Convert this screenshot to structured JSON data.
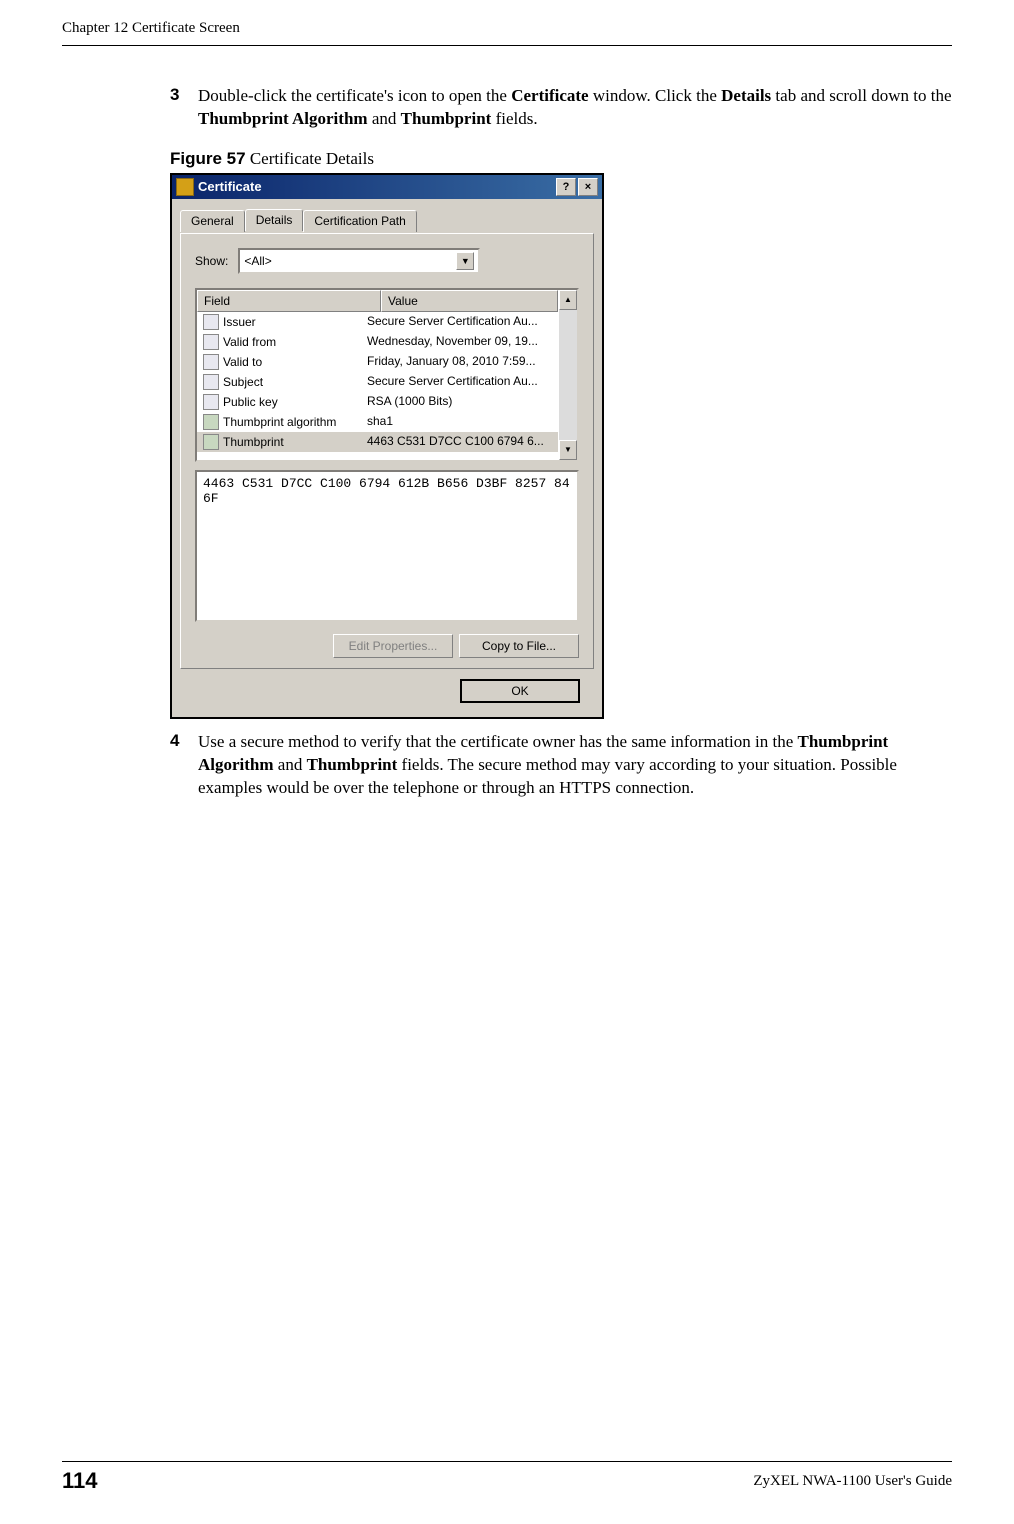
{
  "header": {
    "chapter": "Chapter 12 Certificate Screen"
  },
  "step3": {
    "num": "3",
    "text_before": "Double-click the certificate's icon to open the ",
    "bold1": "Certificate",
    "text_mid1": " window. Click the ",
    "bold2": "Details",
    "text_mid2": " tab and scroll down to the ",
    "bold3": "Thumbprint Algorithm",
    "text_mid3": " and ",
    "bold4": "Thumbprint",
    "text_after": " fields."
  },
  "figure": {
    "label_bold": "Figure 57",
    "label_rest": "   Certificate Details"
  },
  "window": {
    "title": "Certificate",
    "help": "?",
    "close": "×",
    "tabs": {
      "general": "General",
      "details": "Details",
      "certpath": "Certification Path"
    },
    "show_label": "Show:",
    "show_value": "<All>",
    "dropdown_arrow": "▼",
    "col_field": "Field",
    "col_value": "Value",
    "rows": [
      {
        "field": "Issuer",
        "value": "Secure Server Certification Au...",
        "special": false
      },
      {
        "field": "Valid from",
        "value": "Wednesday, November 09, 19...",
        "special": false
      },
      {
        "field": "Valid to",
        "value": "Friday, January 08, 2010 7:59...",
        "special": false
      },
      {
        "field": "Subject",
        "value": "Secure Server Certification Au...",
        "special": false
      },
      {
        "field": "Public key",
        "value": "RSA (1000 Bits)",
        "special": false
      },
      {
        "field": "Thumbprint algorithm",
        "value": "sha1",
        "special": true
      },
      {
        "field": "Thumbprint",
        "value": "4463 C531 D7CC C100 6794 6...",
        "special": true
      }
    ],
    "scroll_up": "▲",
    "scroll_down": "▼",
    "detail_text": "4463 C531 D7CC C100 6794 612B B656 D3BF 8257 846F",
    "btn_edit": "Edit Properties...",
    "btn_copy": "Copy to File...",
    "btn_ok": "OK"
  },
  "step4": {
    "num": "4",
    "text_before": "Use a secure method to verify that the certificate owner has the same information in the ",
    "bold1": "Thumbprint Algorithm",
    "text_mid1": " and ",
    "bold2": "Thumbprint",
    "text_after": " fields. The secure method may vary according to your situation. Possible examples would be over the telephone or through an HTTPS connection."
  },
  "footer": {
    "page": "114",
    "guide": "ZyXEL NWA-1100 User's Guide"
  }
}
